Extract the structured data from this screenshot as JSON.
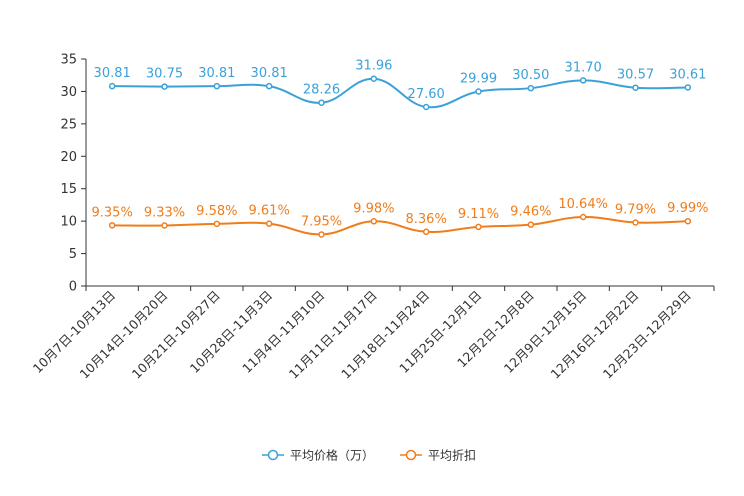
{
  "chart_data": {
    "type": "line",
    "title": "",
    "xlabel": "",
    "ylabel": "",
    "ylim": [
      0,
      35
    ],
    "yticks": [
      0,
      5,
      10,
      15,
      20,
      25,
      30,
      35
    ],
    "grid": false,
    "legend_position": "bottom-center",
    "categories": [
      "10月7日-10月13日",
      "10月14日-10月20日",
      "10月21日-10月27日",
      "10月28日-11月3日",
      "11月4日-11月10日",
      "11月11日-11月17日",
      "11月18日-11月24日",
      "11月25日-12月1日",
      "12月2日-12月8日",
      "12月9日-12月15日",
      "12月16日-12月22日",
      "12月23日-12月29日"
    ],
    "series": [
      {
        "name": "平均价格（万）",
        "color": "#3ba1d8",
        "values": [
          30.81,
          30.75,
          30.81,
          30.81,
          28.26,
          31.96,
          27.6,
          29.99,
          30.5,
          31.7,
          30.57,
          30.61
        ],
        "labels": [
          "30.81",
          "30.75",
          "30.81",
          "30.81",
          "28.26",
          "31.96",
          "27.60",
          "29.99",
          "30.50",
          "31.70",
          "30.57",
          "30.61"
        ]
      },
      {
        "name": "平均折扣",
        "color": "#f07d1a",
        "values": [
          9.35,
          9.33,
          9.58,
          9.61,
          7.95,
          9.98,
          8.36,
          9.11,
          9.46,
          10.64,
          9.79,
          9.99
        ],
        "labels": [
          "9.35%",
          "9.33%",
          "9.58%",
          "9.61%",
          "7.95%",
          "9.98%",
          "8.36%",
          "9.11%",
          "9.46%",
          "10.64%",
          "9.79%",
          "9.99%"
        ]
      }
    ]
  }
}
